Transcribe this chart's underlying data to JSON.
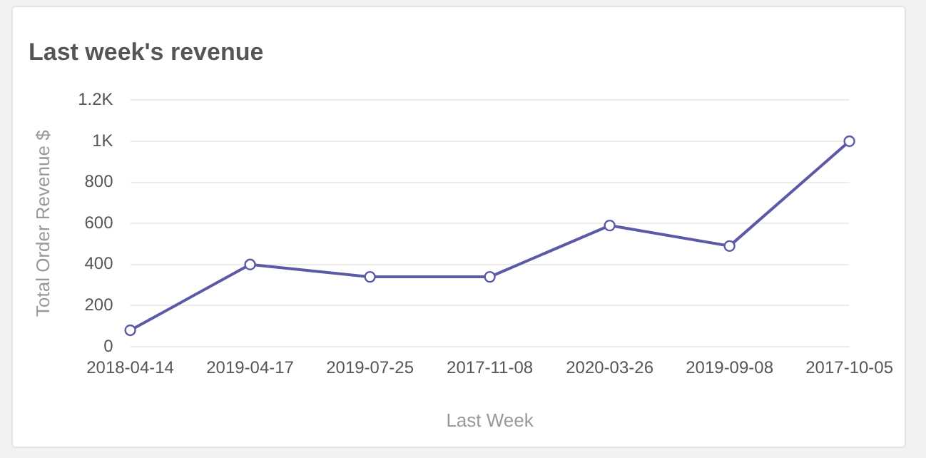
{
  "chart_data": {
    "type": "line",
    "title": "Last week's revenue",
    "xlabel": "Last Week",
    "ylabel": "Total Order Revenue $",
    "categories": [
      "2018-04-14",
      "2019-04-17",
      "2019-07-25",
      "2017-11-08",
      "2020-03-26",
      "2019-09-08",
      "2017-10-05"
    ],
    "series": [
      {
        "color": "#5c5aa6",
        "values": [
          80,
          400,
          340,
          340,
          590,
          490,
          1000
        ]
      }
    ],
    "ylim": [
      0,
      1200
    ],
    "yticks": [
      0,
      200,
      400,
      600,
      800,
      {
        "value": 1000,
        "label": "1K"
      },
      {
        "value": 1200,
        "label": "1.2K"
      }
    ],
    "grid": "y",
    "marker": "circle",
    "legend": false
  }
}
